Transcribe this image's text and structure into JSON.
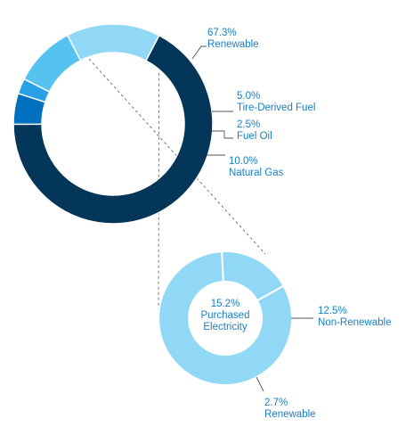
{
  "chart_data": [
    {
      "type": "pie",
      "variant": "donut",
      "title": "",
      "slices": [
        {
          "value": 67.3,
          "pct_label": "67.3%",
          "name": "Renewable",
          "color": "#033658"
        },
        {
          "value": 5.0,
          "pct_label": "5.0%",
          "name": "Tire-Derived Fuel",
          "color": "#0070bf"
        },
        {
          "value": 2.5,
          "pct_label": "2.5%",
          "name": "Fuel Oil",
          "color": "#2aa1e6"
        },
        {
          "value": 10.0,
          "pct_label": "10.0%",
          "name": "Natural Gas",
          "color": "#56c2f0"
        },
        {
          "value": 15.2,
          "pct_label": "",
          "name": "",
          "color": "#91d8f7"
        }
      ]
    },
    {
      "type": "pie",
      "variant": "donut",
      "center_label": [
        "15.2%",
        "Purchased",
        "Electricity"
      ],
      "slices": [
        {
          "value": 12.5,
          "pct_label": "12.5%",
          "name": "Non-Renewable",
          "color": "#91d8f7"
        },
        {
          "value": 2.7,
          "pct_label": "2.7%",
          "name": "Renewable",
          "color": "#91d8f7"
        }
      ]
    }
  ],
  "colors": {
    "label_text": "#1a7fc4",
    "leader_line": "#555555",
    "connector": "#777777",
    "separator": "#ffffff"
  }
}
